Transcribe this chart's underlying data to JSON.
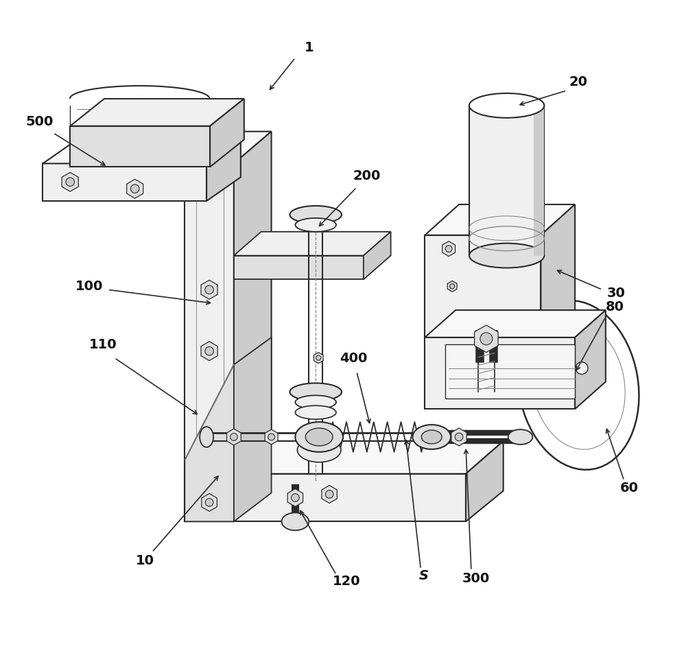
{
  "bg_color": "#ffffff",
  "lc": "#2a2a2a",
  "lc_light": "#888888",
  "fc_white": "#ffffff",
  "fc_light": "#f0f0f0",
  "fc_mid": "#e0e0e0",
  "fc_dark": "#cccccc",
  "fc_darker": "#b8b8b8",
  "figsize": [
    10.0,
    9.53
  ],
  "dpi": 100
}
